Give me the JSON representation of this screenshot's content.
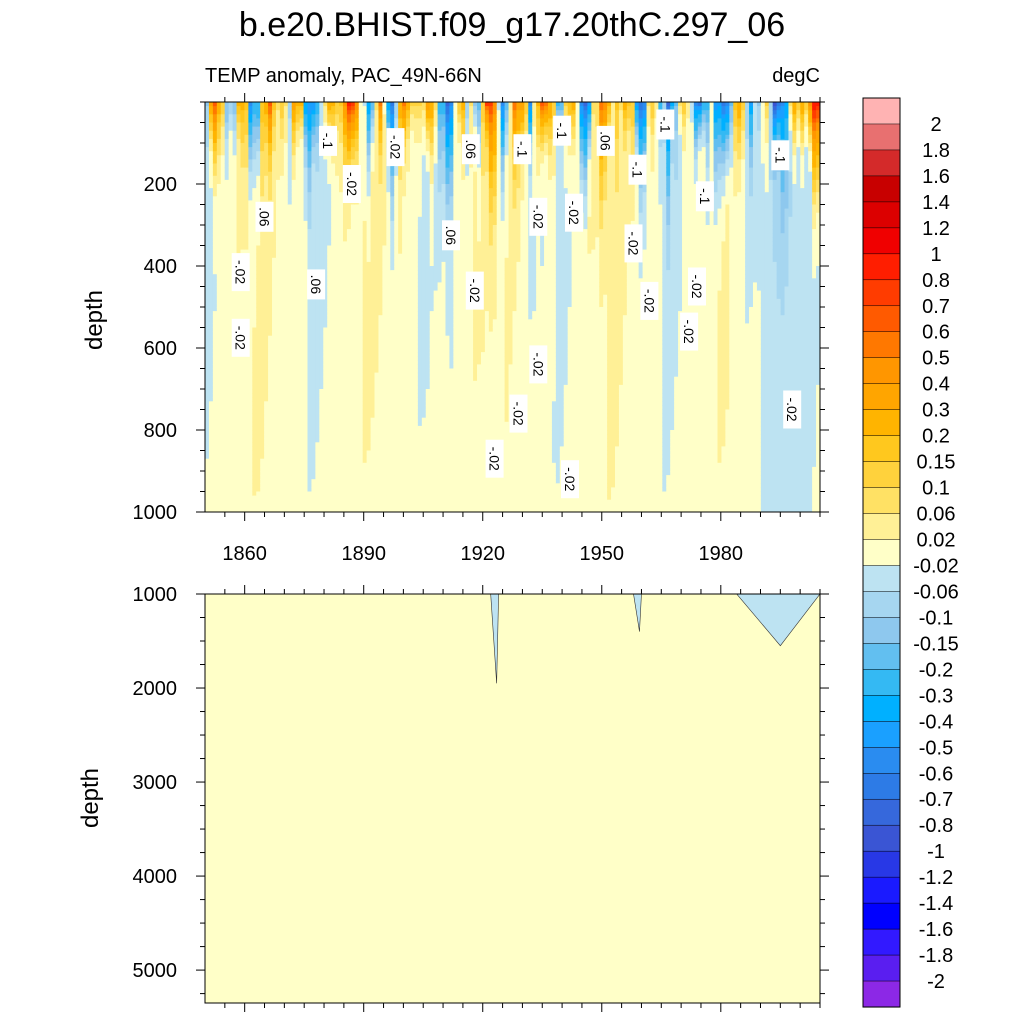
{
  "chart_data": {
    "type": "heatmap",
    "title": "b.e20.BHIST.f09_g17.20thC.297_06",
    "variable_label": "TEMP anomaly, PAC_49N-66N",
    "units_label": "degC",
    "ylabel": "depth",
    "xlim": [
      1850,
      2005
    ],
    "upper_panel": {
      "ylim": [
        0,
        1000
      ],
      "yticks": [
        "200",
        "400",
        "600",
        "800",
        "1000"
      ]
    },
    "lower_panel": {
      "ylim": [
        1000,
        5350
      ],
      "yticks": [
        "1000",
        "2000",
        "3000",
        "4000",
        "5000"
      ]
    },
    "xtick_labels": [
      "1860",
      "1890",
      "1920",
      "1950",
      "1980"
    ],
    "colorbar_levels": [
      "2",
      "1.8",
      "1.6",
      "1.4",
      "1.2",
      "1",
      "0.8",
      "0.7",
      "0.6",
      "0.5",
      "0.4",
      "0.3",
      "0.2",
      "0.15",
      "0.1",
      "0.06",
      "0.02",
      "-0.02",
      "-0.06",
      "-0.1",
      "-0.15",
      "-0.2",
      "-0.3",
      "-0.4",
      "-0.5",
      "-0.6",
      "-0.7",
      "-0.8",
      "-1",
      "-1.2",
      "-1.4",
      "-1.6",
      "-1.8",
      "-2"
    ],
    "colorbar_colors": [
      "#ffb3b3",
      "#e87070",
      "#d42a2a",
      "#c80000",
      "#dc0000",
      "#f00000",
      "#ff1e00",
      "#ff3c00",
      "#ff5a00",
      "#ff7800",
      "#ff9600",
      "#ffa500",
      "#ffb400",
      "#ffc81e",
      "#ffd23c",
      "#ffe164",
      "#fff096",
      "#ffffc8",
      "#bde3f2",
      "#a6d6f0",
      "#8ec8ee",
      "#62bff0",
      "#34b9f3",
      "#00b0ff",
      "#1aa0ff",
      "#2a8cf0",
      "#2d7be6",
      "#3668dc",
      "#3a55d4",
      "#2838e6",
      "#1a1aff",
      "#0000ff",
      "#3219ff",
      "#5a1ef0",
      "#8c28e6"
    ],
    "contour_labels": [
      {
        "text": "-.1",
        "x": 1881,
        "y": 95
      },
      {
        "text": "-.02",
        "x": 1898,
        "y": 110
      },
      {
        "text": ".06",
        "x": 1917,
        "y": 115
      },
      {
        "text": "-.1",
        "x": 1930,
        "y": 115
      },
      {
        "text": "-.1",
        "x": 1940,
        "y": 70
      },
      {
        "text": ".06",
        "x": 1951,
        "y": 95
      },
      {
        "text": "-.1",
        "x": 1966,
        "y": 55
      },
      {
        "text": "-.1",
        "x": 1959,
        "y": 165
      },
      {
        "text": "-.1",
        "x": 1995,
        "y": 130
      },
      {
        "text": "-.02",
        "x": 1887,
        "y": 200
      },
      {
        "text": ".06",
        "x": 1865,
        "y": 280
      },
      {
        "text": "-.1",
        "x": 1976,
        "y": 230
      },
      {
        "text": "-.02",
        "x": 1934,
        "y": 280
      },
      {
        "text": "-.02",
        "x": 1943,
        "y": 270
      },
      {
        "text": ".06",
        "x": 1912,
        "y": 325
      },
      {
        "text": "-.02",
        "x": 1958,
        "y": 345
      },
      {
        "text": "-.02",
        "x": 1859,
        "y": 415
      },
      {
        "text": ".06",
        "x": 1878,
        "y": 445
      },
      {
        "text": "-.02",
        "x": 1918,
        "y": 460
      },
      {
        "text": "-.02",
        "x": 1962,
        "y": 485
      },
      {
        "text": "-.02",
        "x": 1974,
        "y": 450
      },
      {
        "text": "-.02",
        "x": 1972,
        "y": 560
      },
      {
        "text": "-.02",
        "x": 1859,
        "y": 575
      },
      {
        "text": "-.02",
        "x": 1934,
        "y": 640
      },
      {
        "text": "-.02",
        "x": 1929,
        "y": 760
      },
      {
        "text": "-.02",
        "x": 1998,
        "y": 750
      },
      {
        "text": "-.02",
        "x": 1923,
        "y": 870
      },
      {
        "text": "-.02",
        "x": 1942,
        "y": 920
      }
    ],
    "deep_anomalies": [
      {
        "x0": 1922,
        "x1": 1924,
        "depth": 1950
      },
      {
        "x0": 1958,
        "x1": 1960,
        "depth": 1400
      },
      {
        "x0": 1984,
        "x1": 2005,
        "depth": 1550
      }
    ]
  }
}
